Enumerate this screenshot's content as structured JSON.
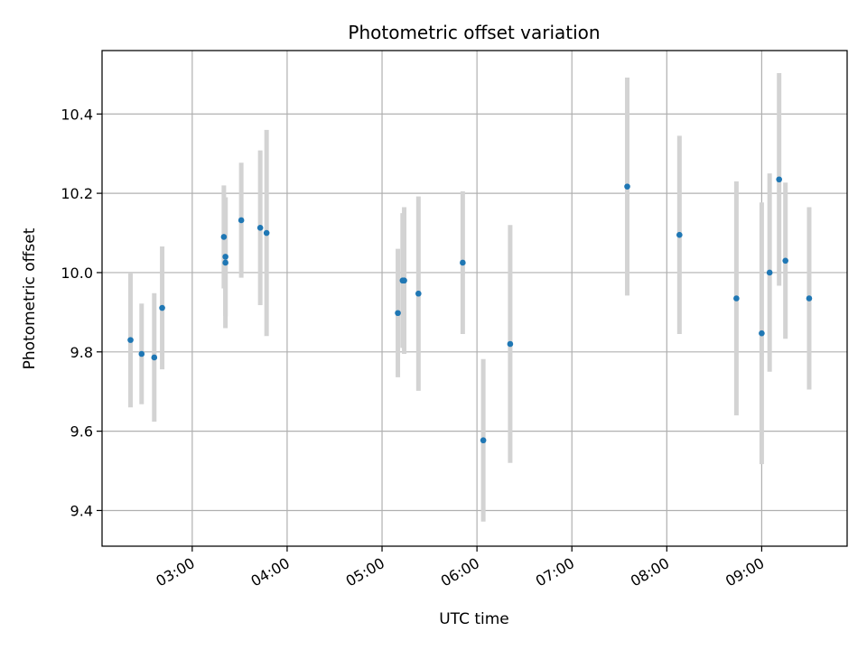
{
  "chart_data": {
    "type": "scatter",
    "title": "Photometric offset variation",
    "xlabel": "UTC time",
    "ylabel": "Photometric offset",
    "x_ticks": [
      "03:00",
      "04:00",
      "05:00",
      "06:00",
      "07:00",
      "08:00",
      "09:00"
    ],
    "y_ticks": [
      "9.4",
      "9.6",
      "9.8",
      "10.0",
      "10.2",
      "10.4"
    ],
    "xlim": [
      "02:03",
      "09:54"
    ],
    "ylim": [
      9.31,
      10.56
    ],
    "grid": true,
    "point_color": "#1f77b4",
    "errorbar_color": "#d3d3d3",
    "points": [
      {
        "x": "02:21",
        "y": 9.83,
        "err": 0.17
      },
      {
        "x": "02:28",
        "y": 9.795,
        "err": 0.127
      },
      {
        "x": "02:36",
        "y": 9.786,
        "err": 0.162
      },
      {
        "x": "02:41",
        "y": 9.911,
        "err": 0.155
      },
      {
        "x": "03:20",
        "y": 10.09,
        "err": 0.13
      },
      {
        "x": "03:21",
        "y": 10.04,
        "err": 0.15
      },
      {
        "x": "03:21",
        "y": 10.025,
        "err": 0.165
      },
      {
        "x": "03:31",
        "y": 10.132,
        "err": 0.145
      },
      {
        "x": "03:43",
        "y": 10.113,
        "err": 0.195
      },
      {
        "x": "03:47",
        "y": 10.1,
        "err": 0.26
      },
      {
        "x": "05:10",
        "y": 9.898,
        "err": 0.162
      },
      {
        "x": "05:13",
        "y": 9.98,
        "err": 0.17
      },
      {
        "x": "05:14",
        "y": 9.98,
        "err": 0.185
      },
      {
        "x": "05:23",
        "y": 9.947,
        "err": 0.245
      },
      {
        "x": "05:51",
        "y": 10.025,
        "err": 0.18
      },
      {
        "x": "06:04",
        "y": 9.577,
        "err": 0.205
      },
      {
        "x": "06:21",
        "y": 9.82,
        "err": 0.3
      },
      {
        "x": "07:35",
        "y": 10.217,
        "err": 0.275
      },
      {
        "x": "08:08",
        "y": 10.095,
        "err": 0.25
      },
      {
        "x": "08:44",
        "y": 9.935,
        "err": 0.295
      },
      {
        "x": "09:00",
        "y": 9.847,
        "err": 0.33
      },
      {
        "x": "09:05",
        "y": 10.0,
        "err": 0.25
      },
      {
        "x": "09:11",
        "y": 10.235,
        "err": 0.268
      },
      {
        "x": "09:15",
        "y": 10.03,
        "err": 0.197
      },
      {
        "x": "09:30",
        "y": 9.935,
        "err": 0.23
      }
    ]
  }
}
